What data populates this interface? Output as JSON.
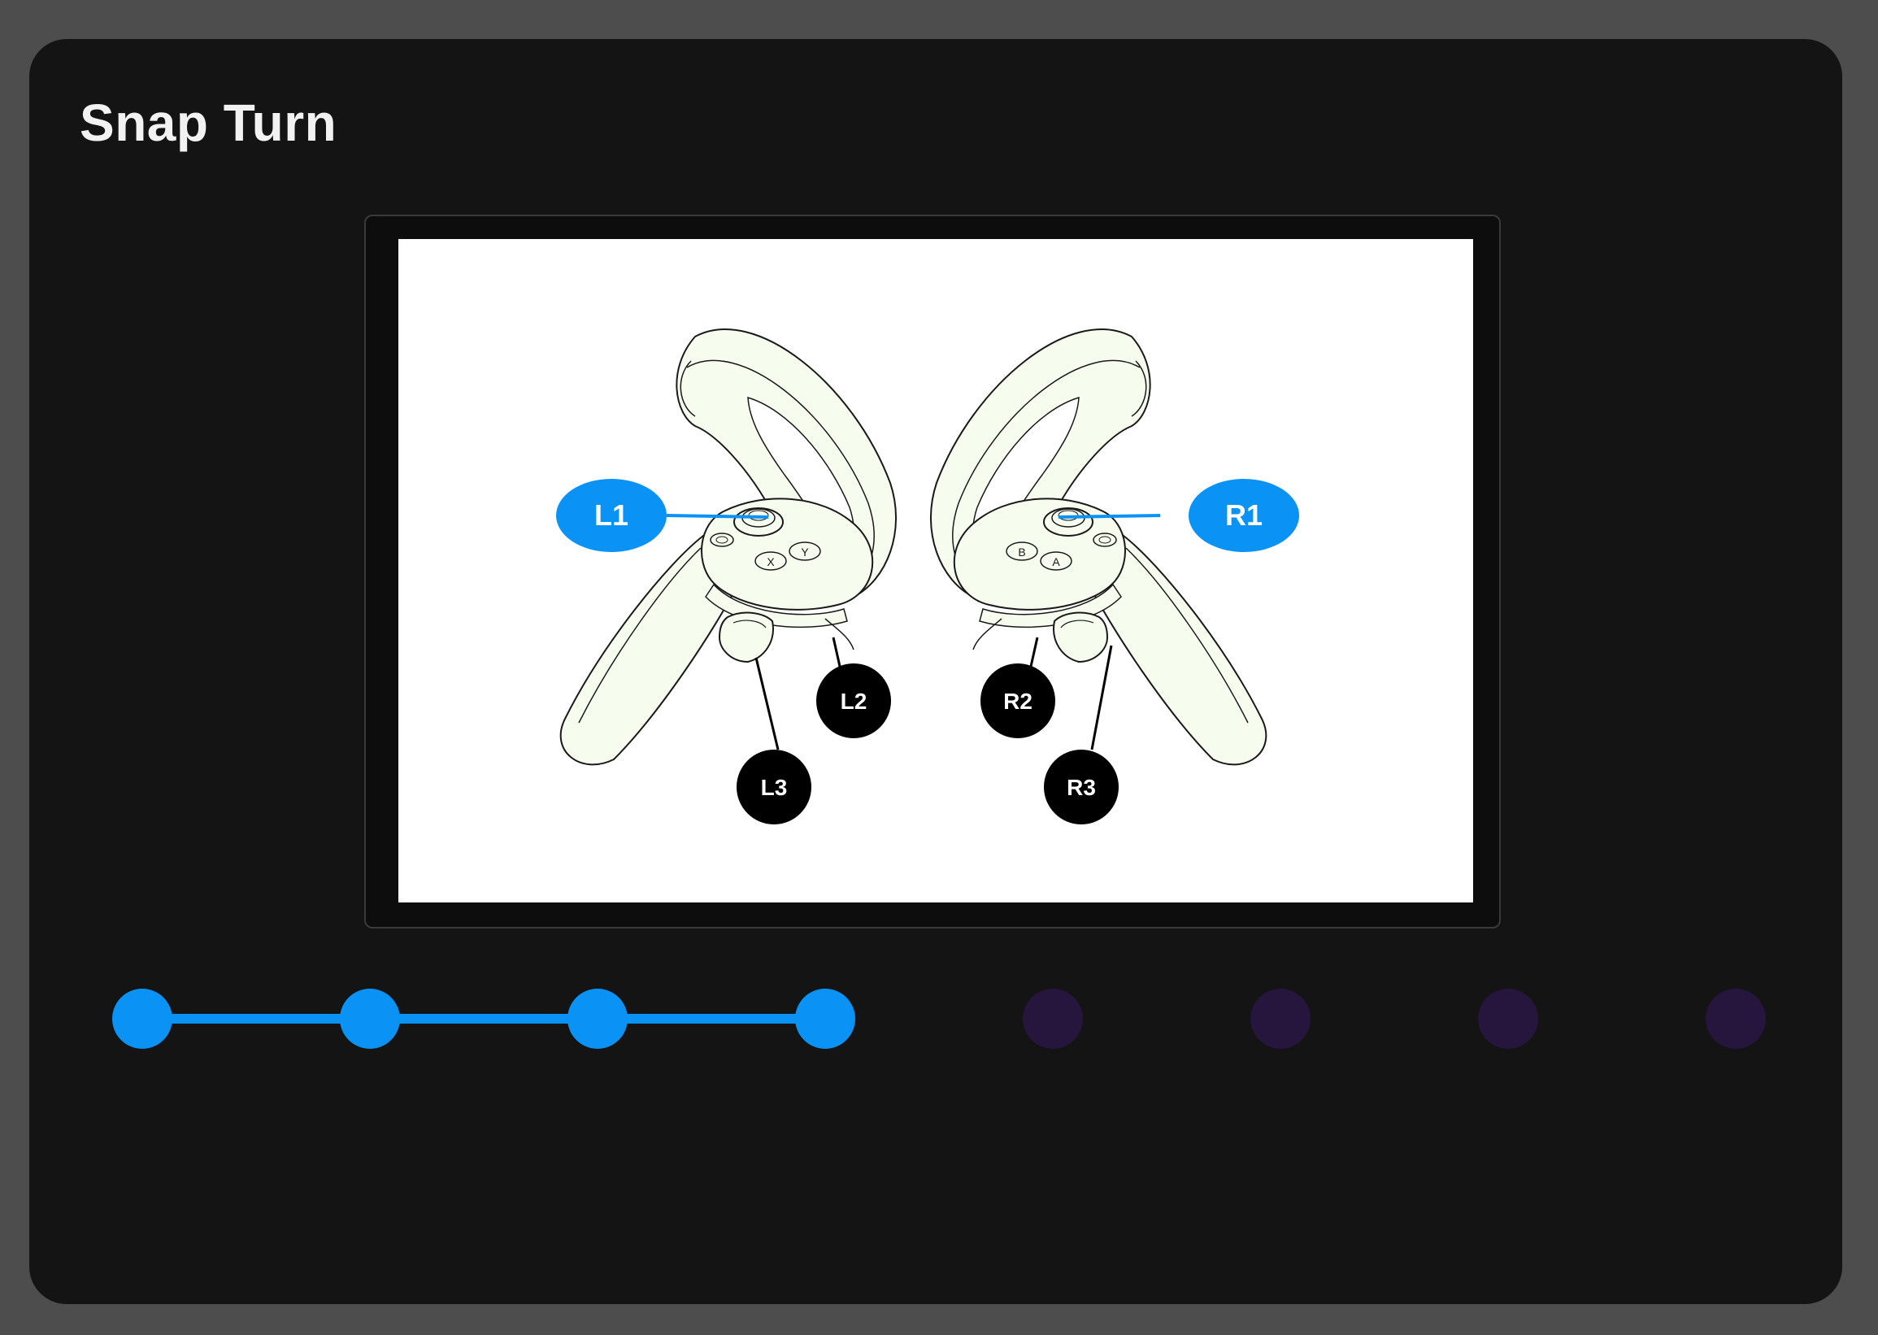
{
  "header": {
    "title": "Snap Turn"
  },
  "diagram": {
    "labels": {
      "L1": "L1",
      "R1": "R1",
      "L2": "L2",
      "L3": "L3",
      "R2": "R2",
      "R3": "R3"
    },
    "button_letters": {
      "x": "X",
      "y": "Y",
      "a": "A",
      "b": "B"
    }
  },
  "progress": {
    "total_steps": 8,
    "completed_steps": 4,
    "active_color": "#0a93f5",
    "inactive_color": "#26163d"
  },
  "colors": {
    "panel": "#141414",
    "background": "#4d4d4d",
    "accent": "#0a93f5",
    "controller_fill": "#f6fcee"
  }
}
